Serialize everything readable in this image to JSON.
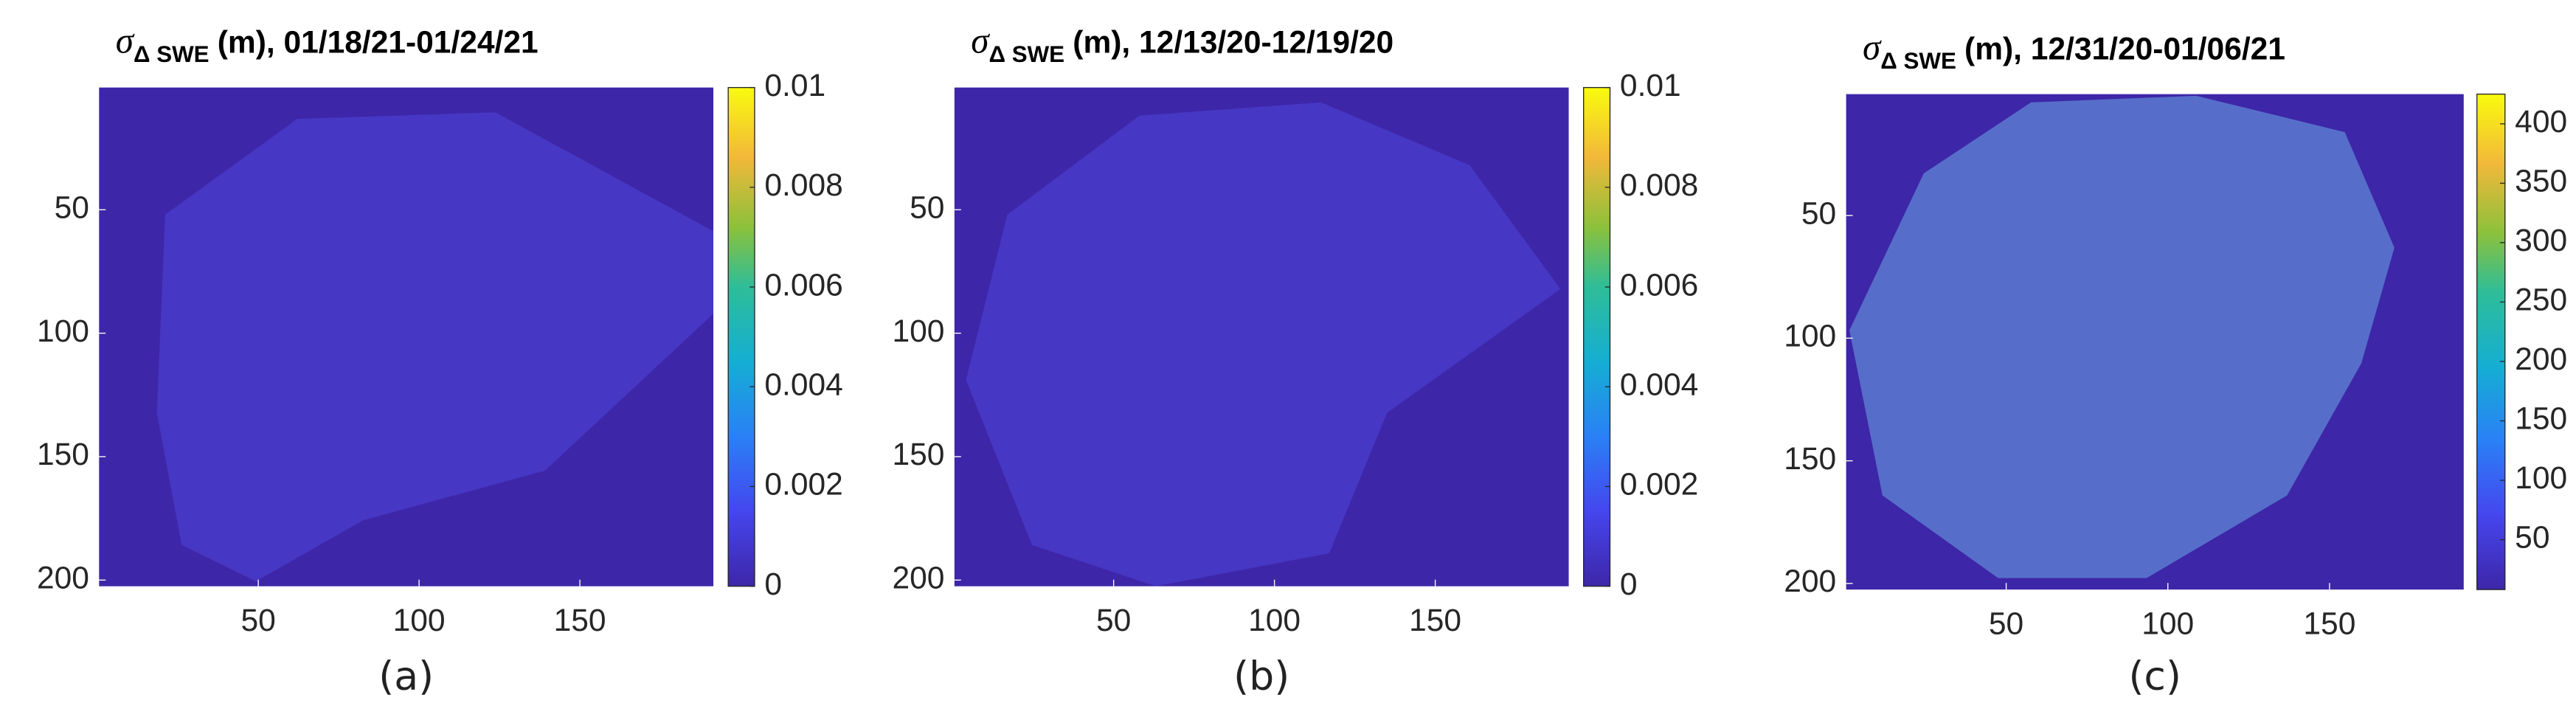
{
  "chart_data": [
    {
      "type": "heatmap",
      "title": {
        "symbol": "σ",
        "subscript": "Δ SWE",
        "text": "(m), 01/18/21-01/24/21"
      },
      "caption": "(a)",
      "xlim": [
        0.5,
        191.5
      ],
      "xticks": [
        50,
        100,
        150
      ],
      "ylim": [
        202.5,
        0.5
      ],
      "yticks": [
        50,
        100,
        150,
        200
      ],
      "clim": [
        0,
        0.01
      ],
      "cticks": [
        0,
        0.002,
        0.004,
        0.006,
        0.008,
        0.01
      ],
      "colormap": "parula"
    },
    {
      "type": "heatmap",
      "title": {
        "symbol": "σ",
        "subscript": "Δ SWE",
        "text": "(m), 12/13/20-12/19/20"
      },
      "caption": "(b)",
      "xlim": [
        0.5,
        191.5
      ],
      "xticks": [
        50,
        100,
        150
      ],
      "ylim": [
        202.5,
        0.5
      ],
      "yticks": [
        50,
        100,
        150,
        200
      ],
      "clim": [
        0,
        0.01
      ],
      "cticks": [
        0,
        0.002,
        0.004,
        0.006,
        0.008,
        0.01
      ],
      "colormap": "parula"
    },
    {
      "type": "heatmap",
      "title": {
        "symbol": "σ",
        "subscript": "Δ SWE",
        "text": "(m), 12/31/20-01/06/21"
      },
      "caption": "(c)",
      "xlim": [
        0.5,
        191.5
      ],
      "xticks": [
        50,
        100,
        150
      ],
      "ylim": [
        202.5,
        0.5
      ],
      "yticks": [
        50,
        100,
        150,
        200
      ],
      "clim": [
        8,
        425
      ],
      "cticks": [
        50,
        100,
        150,
        200,
        250,
        300,
        350,
        400
      ],
      "colormap": "parula"
    }
  ]
}
